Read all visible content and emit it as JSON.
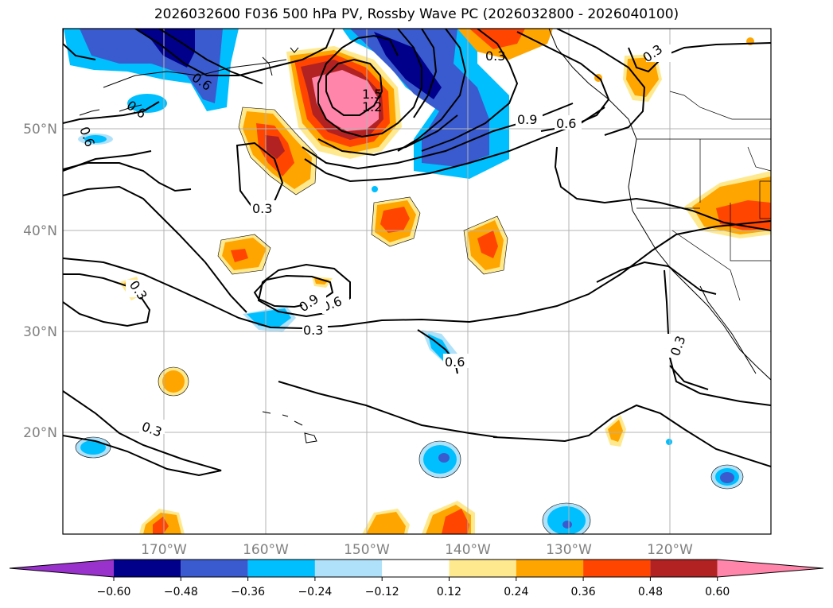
{
  "title": "2026032600 F036 500 hPa PV, Rossby Wave PC (2026032800 - 2026040100)",
  "lat_labels": [
    "50°N",
    "40°N",
    "30°N",
    "20°N"
  ],
  "lon_labels": [
    "170°W",
    "160°W",
    "150°W",
    "140°W",
    "130°W",
    "120°W"
  ],
  "contour_labels": {
    "c_03_a": "0.3",
    "c_03_b": "0.3",
    "c_03_c": "0.3",
    "c_03_d": "0.3",
    "c_03_e": "0.3",
    "c_03_f": "0.3",
    "c_03_g": "0.3",
    "c_06_a": "0.6",
    "c_06_b": "0.6",
    "c_06_c": "0.6",
    "c_06_d": "0.6",
    "c_06_e": "0.6",
    "c_06_f": "0.6",
    "c_09_a": "0.9",
    "c_09_b": "0.9",
    "c_12": "1.2",
    "c_15": "1.5"
  },
  "colorbar": {
    "ticks": [
      "−0.60",
      "−0.48",
      "−0.36",
      "−0.24",
      "−0.12",
      "0.12",
      "0.24",
      "0.36",
      "0.48",
      "0.60"
    ],
    "colors": [
      "#9932cc",
      "#00008b",
      "#3a5bcf",
      "#00bfff",
      "#afe2fa",
      "#ffffff",
      "#ffe98f",
      "#ffa500",
      "#ff4500",
      "#b22222",
      "#ff85aa"
    ]
  }
}
